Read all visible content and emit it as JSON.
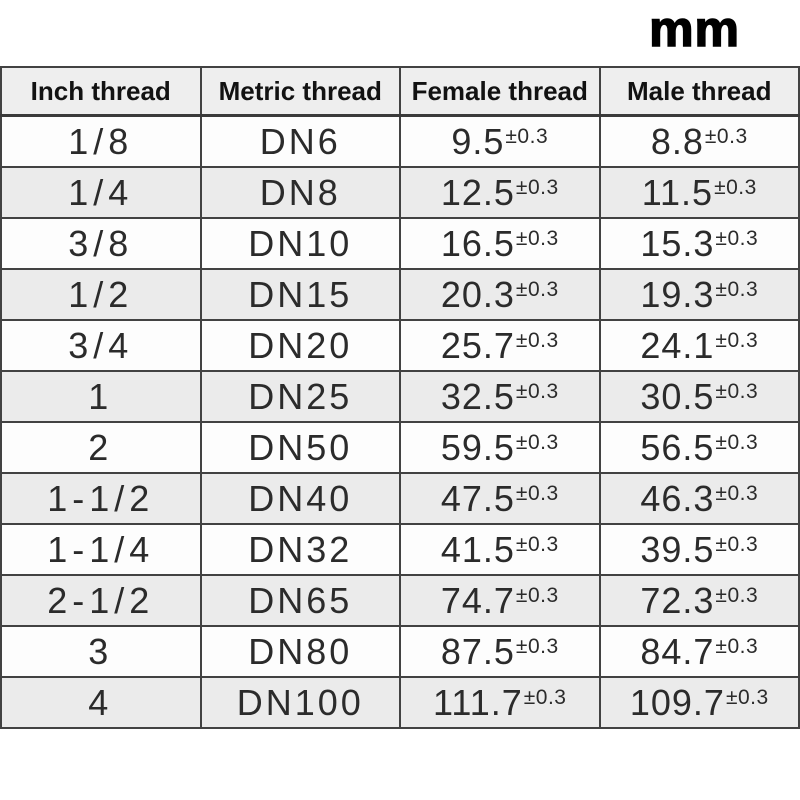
{
  "unit_label": "mm",
  "table": {
    "headers": [
      "Inch thread",
      "Metric thread",
      "Female thread",
      "Male thread"
    ],
    "tolerance": "±0.3",
    "rows": [
      {
        "inch": "1/8",
        "metric": "DN6",
        "female": "9.5",
        "male": "8.8"
      },
      {
        "inch": "1/4",
        "metric": "DN8",
        "female": "12.5",
        "male": "11.5"
      },
      {
        "inch": "3/8",
        "metric": "DN10",
        "female": "16.5",
        "male": "15.3"
      },
      {
        "inch": "1/2",
        "metric": "DN15",
        "female": "20.3",
        "male": "19.3"
      },
      {
        "inch": "3/4",
        "metric": "DN20",
        "female": "25.7",
        "male": "24.1"
      },
      {
        "inch": "1",
        "metric": "DN25",
        "female": "32.5",
        "male": "30.5"
      },
      {
        "inch": "2",
        "metric": "DN50",
        "female": "59.5",
        "male": "56.5"
      },
      {
        "inch": "1-1/2",
        "metric": "DN40",
        "female": "47.5",
        "male": "46.3"
      },
      {
        "inch": "1-1/4",
        "metric": "DN32",
        "female": "41.5",
        "male": "39.5"
      },
      {
        "inch": "2-1/2",
        "metric": "DN65",
        "female": "74.7",
        "male": "72.3"
      },
      {
        "inch": "3",
        "metric": "DN80",
        "female": "87.5",
        "male": "84.7"
      },
      {
        "inch": "4",
        "metric": "DN100",
        "female": "111.7",
        "male": "109.7"
      }
    ]
  },
  "colors": {
    "header_bg": "#eeeeee",
    "row_odd_bg": "#fdfdfd",
    "row_even_bg": "#ebebeb",
    "border": "#424242",
    "text": "#2b2b2b",
    "unit_text": "#000000"
  }
}
